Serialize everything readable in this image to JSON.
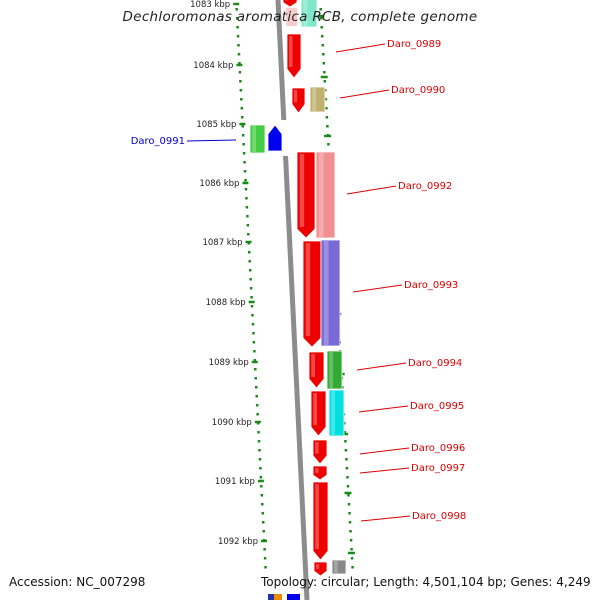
{
  "title": "Dechloromonas aromatica RCB, complete genome",
  "accession": "Accession: NC_007298",
  "topology": "Topology: circular; Length: 4,501,104 bp; Genes: 4,249",
  "colors": {
    "backbone": "#8c8c8c",
    "tick": "#1a8a1a",
    "forward_gene": "#ee0000",
    "label_forward": "#dd0000",
    "label_reverse": "#0000cc"
  },
  "ticks": [
    {
      "label": "1083 kbp"
    },
    {
      "label": "1084 kbp"
    },
    {
      "label": "1085 kbp"
    },
    {
      "label": "1086 kbp"
    },
    {
      "label": "1087 kbp"
    },
    {
      "label": "1088 kbp"
    },
    {
      "label": "1089 kbp"
    },
    {
      "label": "1090 kbp"
    },
    {
      "label": "1091 kbp"
    },
    {
      "label": "1092 kbp"
    }
  ],
  "genes": [
    {
      "id": "Daro_0989",
      "strand": "+",
      "color": "#ee0000"
    },
    {
      "id": "Daro_0990",
      "strand": "+",
      "color": "#ee0000"
    },
    {
      "id": "Daro_0991",
      "strand": "-",
      "color": "#0000ee"
    },
    {
      "id": "Daro_0992",
      "strand": "+",
      "color": "#ee0000"
    },
    {
      "id": "Daro_0993",
      "strand": "+",
      "color": "#ee0000"
    },
    {
      "id": "Daro_0994",
      "strand": "+",
      "color": "#ee0000"
    },
    {
      "id": "Daro_0995",
      "strand": "+",
      "color": "#ee0000"
    },
    {
      "id": "Daro_0996",
      "strand": "+",
      "color": "#ee0000"
    },
    {
      "id": "Daro_0997",
      "strand": "+",
      "color": "#ee0000"
    },
    {
      "id": "Daro_0998",
      "strand": "+",
      "color": "#ee0000"
    }
  ],
  "cog_colors": [
    "#7ee8c8",
    "#f2b8b8",
    "#c0b070",
    "#44cc44",
    "#f09090",
    "#7a6ad8",
    "#33aa33",
    "#00e0e0",
    "#888888"
  ]
}
